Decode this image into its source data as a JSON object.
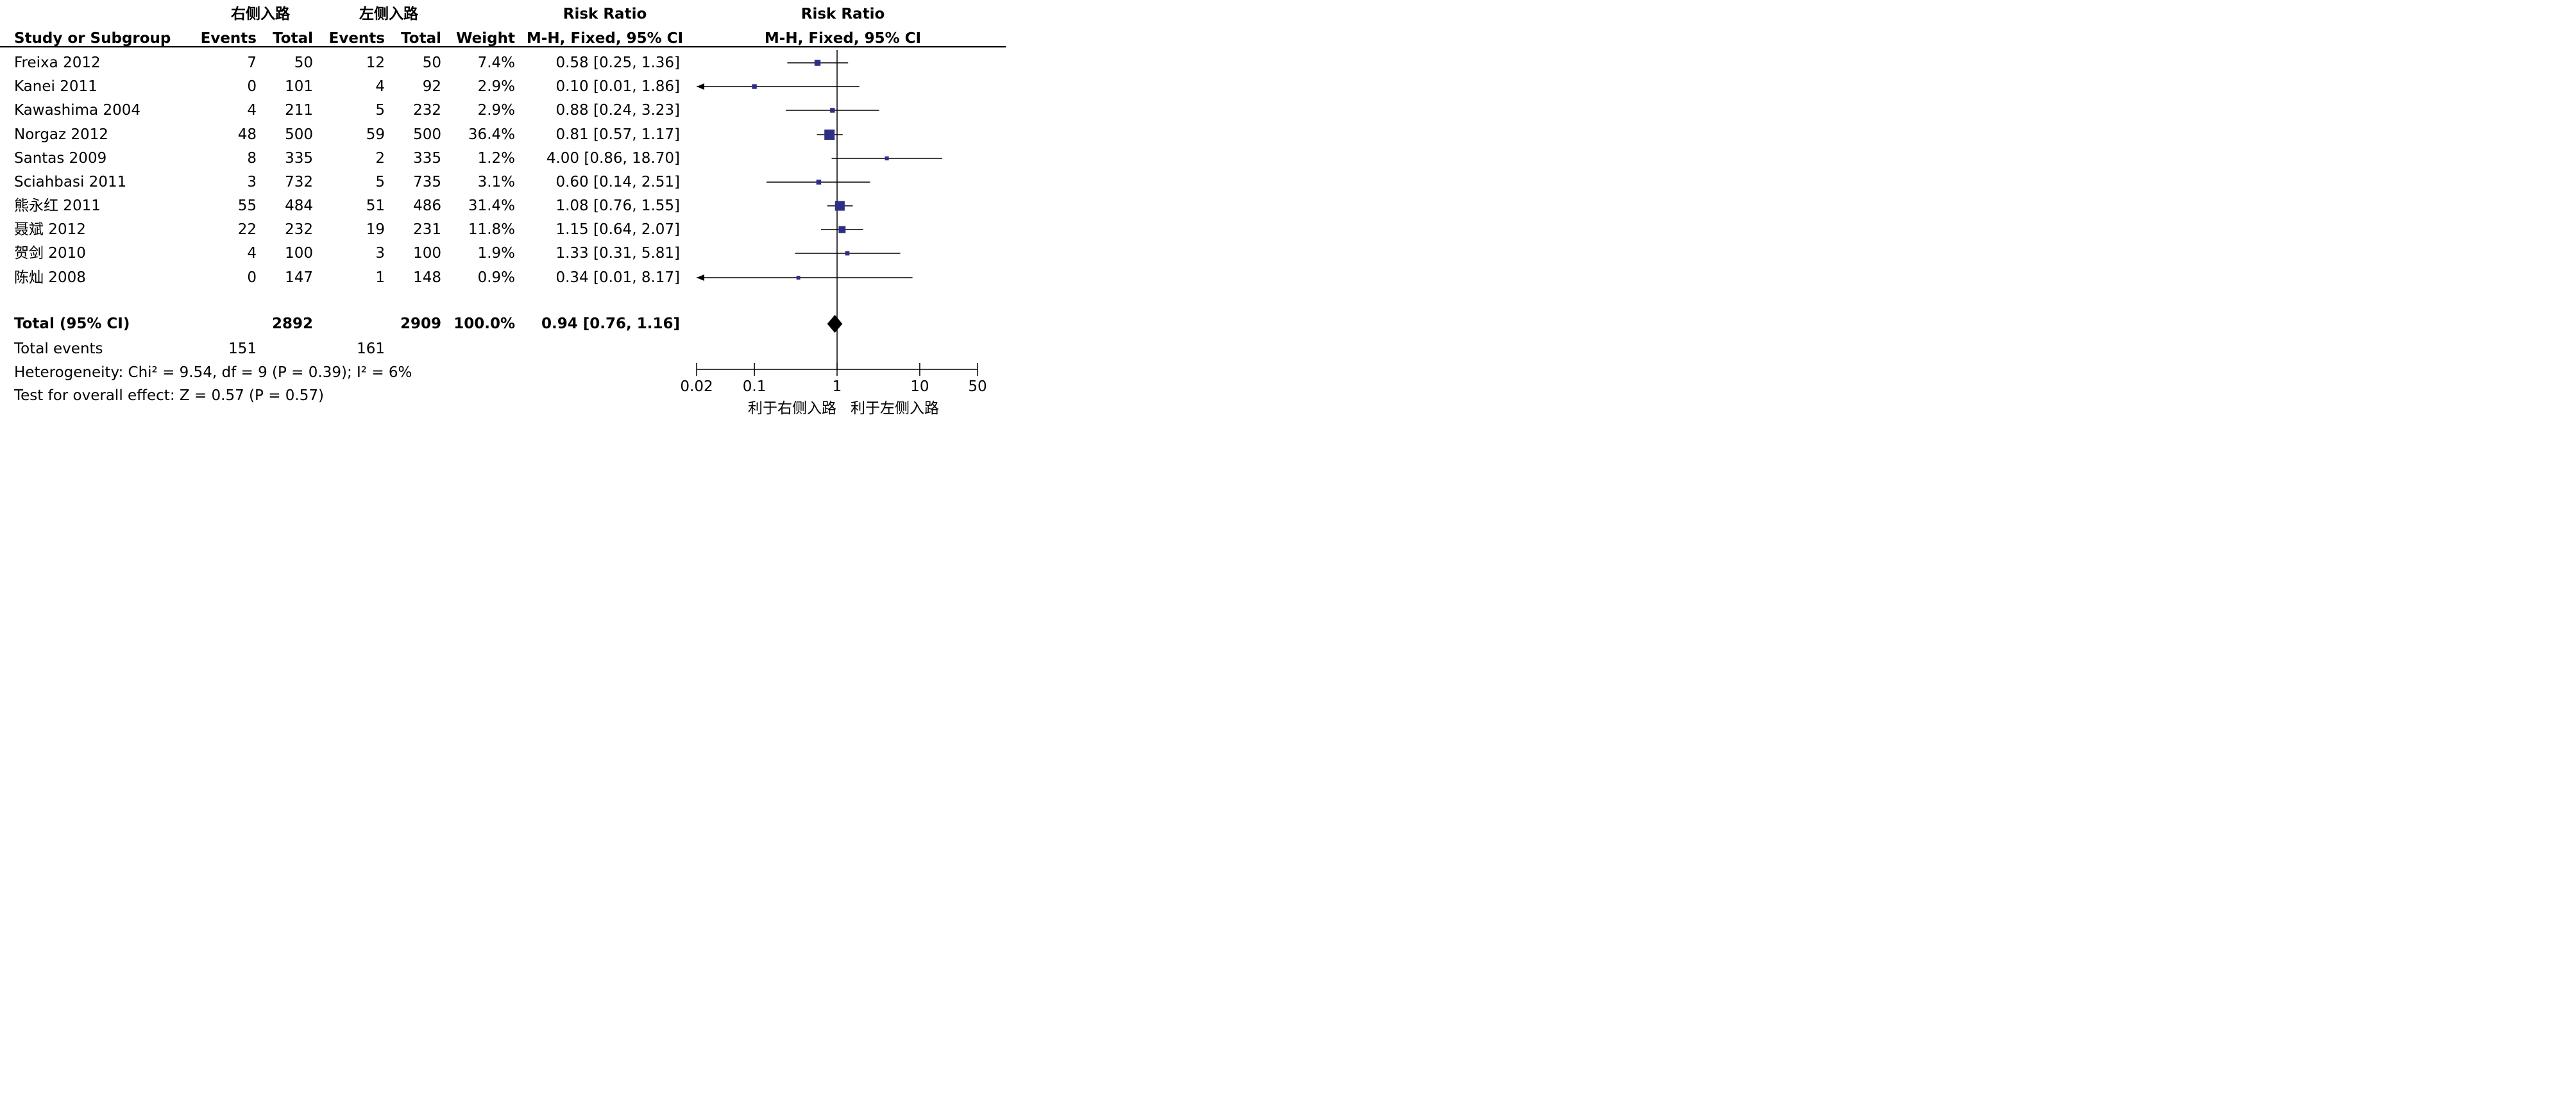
{
  "header": {
    "group_right": "右侧入路",
    "group_left": "左侧入路",
    "rr_title": "Risk Ratio",
    "rr_method": "M-H, Fixed, 95% CI",
    "plot_title": "Risk Ratio",
    "plot_method": "M-H, Fixed, 95% CI",
    "col_study": "Study or Subgroup",
    "col_events1": "Events",
    "col_total1": "Total",
    "col_events2": "Events",
    "col_total2": "Total",
    "col_weight": "Weight"
  },
  "studies": [
    {
      "name": "Freixa 2012",
      "e1": "7",
      "t1": "50",
      "e2": "12",
      "t2": "50",
      "weight": "7.4%",
      "ci": "0.58 [0.25, 1.36]"
    },
    {
      "name": "Kanei 2011",
      "e1": "0",
      "t1": "101",
      "e2": "4",
      "t2": "92",
      "weight": "2.9%",
      "ci": "0.10 [0.01, 1.86]"
    },
    {
      "name": "Kawashima 2004",
      "e1": "4",
      "t1": "211",
      "e2": "5",
      "t2": "232",
      "weight": "2.9%",
      "ci": "0.88 [0.24, 3.23]"
    },
    {
      "name": "Norgaz 2012",
      "e1": "48",
      "t1": "500",
      "e2": "59",
      "t2": "500",
      "weight": "36.4%",
      "ci": "0.81 [0.57, 1.17]"
    },
    {
      "name": "Santas 2009",
      "e1": "8",
      "t1": "335",
      "e2": "2",
      "t2": "335",
      "weight": "1.2%",
      "ci": "4.00 [0.86, 18.70]"
    },
    {
      "name": "Sciahbasi 2011",
      "e1": "3",
      "t1": "732",
      "e2": "5",
      "t2": "735",
      "weight": "3.1%",
      "ci": "0.60 [0.14, 2.51]"
    },
    {
      "name": "熊永红 2011",
      "e1": "55",
      "t1": "484",
      "e2": "51",
      "t2": "486",
      "weight": "31.4%",
      "ci": "1.08 [0.76, 1.55]"
    },
    {
      "name": "聂斌 2012",
      "e1": "22",
      "t1": "232",
      "e2": "19",
      "t2": "231",
      "weight": "11.8%",
      "ci": "1.15 [0.64, 2.07]"
    },
    {
      "name": "贺剑 2010",
      "e1": "4",
      "t1": "100",
      "e2": "3",
      "t2": "100",
      "weight": "1.9%",
      "ci": "1.33 [0.31, 5.81]"
    },
    {
      "name": "陈灿 2008",
      "e1": "0",
      "t1": "147",
      "e2": "1",
      "t2": "148",
      "weight": "0.9%",
      "ci": "0.34 [0.01, 8.17]"
    }
  ],
  "total": {
    "label": "Total (95% CI)",
    "t1": "2892",
    "t2": "2909",
    "weight": "100.0%",
    "ci": "0.94 [0.76, 1.16]"
  },
  "total_events": {
    "label": "Total events",
    "e1": "151",
    "e2": "161"
  },
  "heterogeneity": "Heterogeneity: Chi² = 9.54, df = 9 (P = 0.39); I² = 6%",
  "overall_effect": "Test for overall effect: Z = 0.57 (P = 0.57)",
  "axis": {
    "ticks": [
      "0.02",
      "0.1",
      "1",
      "10",
      "50"
    ],
    "favours_right": "利于右侧入路",
    "favours_left": "利于左侧入路"
  },
  "colors": {
    "square": "#2e2e86",
    "line": "#000000"
  },
  "chart_data": {
    "type": "forest",
    "scale": "log",
    "xlim": [
      0.02,
      50
    ],
    "categories": [
      "Freixa 2012",
      "Kanei 2011",
      "Kawashima 2004",
      "Norgaz 2012",
      "Santas 2009",
      "Sciahbasi 2011",
      "熊永红 2011",
      "聂斌 2012",
      "贺剑 2010",
      "陈灿 2008"
    ],
    "estimates": [
      0.58,
      0.1,
      0.88,
      0.81,
      4.0,
      0.6,
      1.08,
      1.15,
      1.33,
      0.34
    ],
    "lower": [
      0.25,
      0.01,
      0.24,
      0.57,
      0.86,
      0.14,
      0.76,
      0.64,
      0.31,
      0.01
    ],
    "upper": [
      1.36,
      1.86,
      3.23,
      1.17,
      18.7,
      2.51,
      1.55,
      2.07,
      5.81,
      8.17
    ],
    "weights": [
      7.4,
      2.9,
      2.9,
      36.4,
      1.2,
      3.1,
      31.4,
      11.8,
      1.9,
      0.9
    ],
    "pooled": {
      "estimate": 0.94,
      "lower": 0.76,
      "upper": 1.16
    }
  }
}
